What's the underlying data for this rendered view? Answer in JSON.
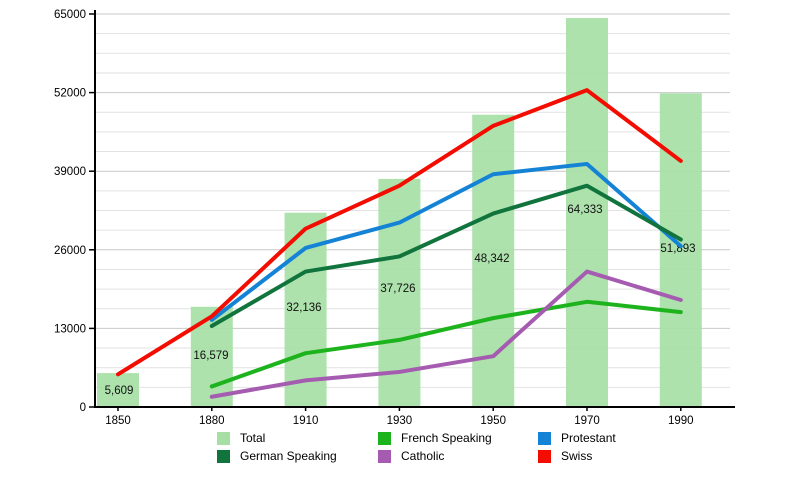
{
  "chart_data": {
    "type": "bar+line",
    "title": "",
    "xlabel": "",
    "ylabel": "",
    "categories": [
      "1850",
      "1880",
      "1910",
      "1930",
      "1950",
      "1970",
      "1990"
    ],
    "y_axis": {
      "ticks": [
        0,
        13000,
        26000,
        39000,
        52000,
        65000
      ],
      "tick_labels": [
        "0",
        "13000",
        "26000",
        "39000",
        "52000",
        "65000"
      ],
      "lim": [
        0,
        65000
      ],
      "minor_step": 3250
    },
    "bars": {
      "name": "Total",
      "color": "#a6dfa6",
      "values": [
        5609,
        16579,
        32136,
        37726,
        48342,
        64333,
        51893
      ],
      "value_labels": [
        "5,609",
        "16,579",
        "32,136",
        "37,726",
        "48,342",
        "64,333",
        "51,893"
      ]
    },
    "series": [
      {
        "name": "French Speaking",
        "color": "#1db31d",
        "values": [
          null,
          3400,
          8900,
          11100,
          14700,
          17400,
          15700
        ]
      },
      {
        "name": "Protestant",
        "color": "#1483d6",
        "values": [
          null,
          14400,
          26300,
          30500,
          38500,
          40200,
          26600
        ]
      },
      {
        "name": "Catholic",
        "color": "#a55cb0",
        "values": [
          null,
          1700,
          4400,
          5800,
          8400,
          22400,
          17700
        ]
      },
      {
        "name": "German Speaking",
        "color": "#10743c",
        "values": [
          null,
          13400,
          22400,
          24900,
          32000,
          36600,
          27700
        ]
      },
      {
        "name": "Swiss",
        "color": "#f20d00",
        "values": [
          5400,
          15000,
          29500,
          36600,
          46500,
          52400,
          40700
        ]
      }
    ],
    "grid": "horizontal",
    "legend_position": "bottom"
  },
  "legend": {
    "items": [
      {
        "label": "Total",
        "color": "#a6dfa6"
      },
      {
        "label": "French Speaking",
        "color": "#1db31d"
      },
      {
        "label": "Protestant",
        "color": "#1483d6"
      },
      {
        "label": "German Speaking",
        "color": "#10743c"
      },
      {
        "label": "Catholic",
        "color": "#a55cb0"
      },
      {
        "label": "Swiss",
        "color": "#f20d00"
      }
    ]
  }
}
